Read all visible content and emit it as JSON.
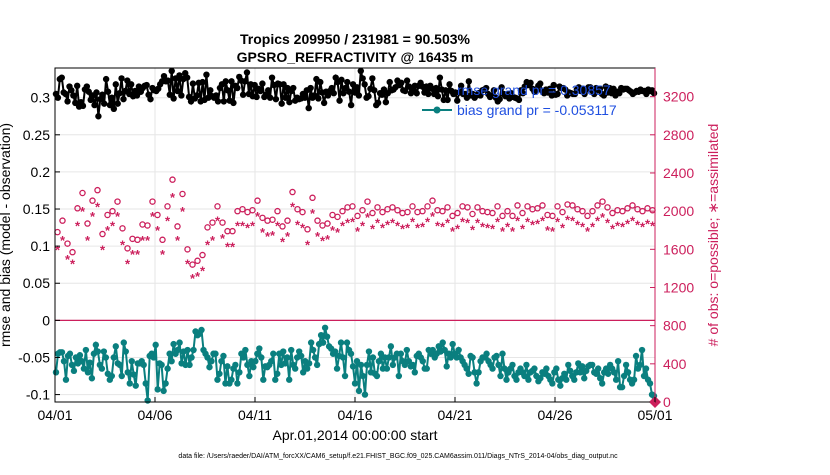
{
  "chart_data": {
    "type": "line",
    "title": "Tropics 209950 / 231981 = 90.503%",
    "subtitle": "GPSRO_REFRACTIVITY @ 16435 m",
    "xlabel": "Apr.01,2014 00:00:00 start",
    "ylabel_left": "rmse and bias (model - observation)",
    "ylabel_right": "# of obs: o=possible; ∗=assimilated",
    "footer": "data file: /Users/raeder/DAI/ATM_forcXX/CAM6_setup/f.e21.FHIST_BGC.f09_025.CAM6assim.011/Diags_NTrS_2014-04/obs_diag_output.nc",
    "x_ticks": [
      {
        "label": "04/01",
        "day": 0
      },
      {
        "label": "04/06",
        "day": 5
      },
      {
        "label": "04/11",
        "day": 10
      },
      {
        "label": "04/16",
        "day": 15
      },
      {
        "label": "04/21",
        "day": 20
      },
      {
        "label": "04/26",
        "day": 25
      },
      {
        "label": "05/01",
        "day": 30
      }
    ],
    "xlim": [
      0,
      30
    ],
    "ylim_left": [
      -0.11,
      0.34
    ],
    "y_ticks_left": [
      "-0.1",
      "-0.05",
      "0",
      "0.05",
      "0.1",
      "0.15",
      "0.2",
      "0.25",
      "0.3"
    ],
    "ylim_right": [
      0,
      3500
    ],
    "y_ticks_right": [
      "0",
      "400",
      "800",
      "1200",
      "1600",
      "2000",
      "2400",
      "2800",
      "3200"
    ],
    "legend": [
      {
        "label": "rmse grand pr = 0.30857",
        "color": "#000000"
      },
      {
        "label": "bias grand pr = -0.053117",
        "color": "#0a7f7f"
      }
    ],
    "legend_text_color": "#1f4fe0",
    "colors": {
      "rmse": "#000000",
      "bias": "#0a7f7f",
      "counts": "#cc1f5c",
      "zero_line": "#cc1f5c"
    },
    "rmse_series": [
      0.305,
      0.3,
      0.325,
      0.327,
      0.307,
      0.305,
      0.295,
      0.315,
      0.31,
      0.303,
      0.293,
      0.316,
      0.288,
      0.294,
      0.289,
      0.311,
      0.315,
      0.308,
      0.297,
      0.303,
      0.29,
      0.307,
      0.275,
      0.298,
      0.304,
      0.292,
      0.325,
      0.308,
      0.29,
      0.3,
      0.285,
      0.318,
      0.292,
      0.306,
      0.326,
      0.298,
      0.309,
      0.323,
      0.305,
      0.318,
      0.302,
      0.309,
      0.303,
      0.315,
      0.308,
      0.313,
      0.316,
      0.317,
      0.304,
      0.298,
      0.313,
      0.31,
      0.309,
      0.312,
      0.318,
      0.322,
      0.329,
      0.322,
      0.323,
      0.304,
      0.336,
      0.299,
      0.326,
      0.309,
      0.33,
      0.303,
      0.325,
      0.333,
      0.327,
      0.301,
      0.295,
      0.319,
      0.299,
      0.303,
      0.32,
      0.295,
      0.321,
      0.297,
      0.331,
      0.3,
      0.31,
      0.302,
      0.3,
      0.303,
      0.295,
      0.313,
      0.318,
      0.295,
      0.322,
      0.31,
      0.296,
      0.322,
      0.293,
      0.316,
      0.313,
      0.328,
      0.323,
      0.304,
      0.322,
      0.334,
      0.305,
      0.318,
      0.302,
      0.317,
      0.301,
      0.312,
      0.309,
      0.319,
      0.301,
      0.304,
      0.31,
      0.3,
      0.327,
      0.317,
      0.298,
      0.319,
      0.318,
      0.292,
      0.318,
      0.3,
      0.313,
      0.294,
      0.309,
      0.313,
      0.296,
      0.3,
      0.298,
      0.299,
      0.305,
      0.3,
      0.31,
      0.286,
      0.313,
      0.3,
      0.303,
      0.325,
      0.299,
      0.321,
      0.307,
      0.293,
      0.308,
      0.303,
      0.309,
      0.313,
      0.306,
      0.327,
      0.321,
      0.296,
      0.324,
      0.306,
      0.313,
      0.321,
      0.308,
      0.29,
      0.318,
      0.307,
      0.314,
      0.303,
      0.336,
      0.326,
      0.318,
      0.3,
      0.302,
      0.312,
      0.326,
      0.31,
      0.29,
      0.293,
      0.306,
      0.304,
      0.311,
      0.294,
      0.306,
      0.321,
      0.31,
      0.311,
      0.314,
      0.323,
      0.317,
      0.32,
      0.31,
      0.309,
      0.323,
      0.315,
      0.306,
      0.31,
      0.316,
      0.306,
      0.316,
      0.32,
      0.315,
      0.307,
      0.315,
      0.305,
      0.316,
      0.312,
      0.305,
      0.313,
      0.302,
      0.327,
      0.311,
      0.297,
      0.31,
      0.297,
      0.318,
      0.309,
      0.305,
      0.307,
      0.296,
      0.307,
      0.316,
      0.305,
      0.305,
      0.3,
      0.322,
      0.303,
      0.305,
      0.3,
      0.303,
      0.306,
      0.303,
      0.31,
      0.311,
      0.313,
      0.305,
      0.301,
      0.303,
      0.31,
      0.3,
      0.295,
      0.298,
      0.314,
      0.305,
      0.302,
      0.305,
      0.299,
      0.306,
      0.301,
      0.3,
      0.299,
      0.297,
      0.31,
      0.306,
      0.315,
      0.321,
      0.317,
      0.32,
      0.312,
      0.308,
      0.311,
      0.316,
      0.319,
      0.309,
      0.306,
      0.311,
      0.307,
      0.312,
      0.303,
      0.317,
      0.304,
      0.305,
      0.315,
      0.313,
      0.313,
      0.311,
      0.303,
      0.307,
      0.306,
      0.305,
      0.305,
      0.311,
      0.314,
      0.309,
      0.312,
      0.305,
      0.311,
      0.314,
      0.314,
      0.309,
      0.305,
      0.313,
      0.31,
      0.312,
      0.305,
      0.303,
      0.315,
      0.307,
      0.313,
      0.306,
      0.312,
      0.303,
      0.308,
      0.306,
      0.313,
      0.311,
      0.312,
      0.312,
      0.31,
      0.308,
      0.305,
      0.307,
      0.309,
      0.308,
      0.311,
      0.309,
      0.309,
      0.305,
      0.311,
      0.309,
      0.31,
      0.306
    ],
    "bias_series": [
      -0.07,
      -0.045,
      -0.043,
      -0.043,
      -0.055,
      -0.08,
      -0.048,
      -0.045,
      -0.06,
      -0.068,
      -0.05,
      -0.058,
      -0.047,
      -0.055,
      -0.065,
      -0.04,
      -0.07,
      -0.057,
      -0.078,
      -0.045,
      -0.033,
      -0.042,
      -0.06,
      -0.065,
      -0.042,
      -0.05,
      -0.072,
      -0.08,
      -0.075,
      -0.05,
      -0.035,
      -0.058,
      -0.06,
      -0.075,
      -0.03,
      -0.042,
      -0.07,
      -0.085,
      -0.055,
      -0.073,
      -0.088,
      -0.058,
      -0.058,
      -0.055,
      -0.06,
      -0.085,
      -0.108,
      -0.048,
      -0.045,
      -0.05,
      -0.033,
      -0.093,
      -0.058,
      -0.06,
      -0.095,
      -0.085,
      -0.065,
      -0.045,
      -0.055,
      -0.032,
      -0.045,
      -0.04,
      -0.03,
      -0.058,
      -0.042,
      -0.06,
      -0.04,
      -0.06,
      -0.05,
      -0.04,
      -0.015,
      -0.02,
      -0.018,
      -0.013,
      -0.04,
      -0.045,
      -0.05,
      -0.063,
      -0.055,
      -0.045,
      -0.045,
      -0.08,
      -0.072,
      -0.055,
      -0.048,
      -0.085,
      -0.062,
      -0.085,
      -0.08,
      -0.065,
      -0.06,
      -0.085,
      -0.07,
      -0.045,
      -0.05,
      -0.04,
      -0.06,
      -0.075,
      -0.055,
      -0.063,
      -0.055,
      -0.045,
      -0.038,
      -0.05,
      -0.08,
      -0.062,
      -0.063,
      -0.06,
      -0.055,
      -0.045,
      -0.08,
      -0.072,
      -0.045,
      -0.06,
      -0.042,
      -0.058,
      -0.05,
      -0.08,
      -0.04,
      -0.06,
      -0.065,
      -0.05,
      -0.042,
      -0.048,
      -0.07,
      -0.055,
      -0.065,
      -0.058,
      -0.03,
      -0.04,
      -0.05,
      -0.06,
      -0.032,
      -0.02,
      -0.03,
      -0.01,
      -0.022,
      -0.035,
      -0.038,
      -0.045,
      -0.042,
      -0.065,
      -0.048,
      -0.03,
      -0.05,
      -0.075,
      -0.03,
      -0.04,
      -0.045,
      -0.062,
      -0.085,
      -0.055,
      -0.095,
      -0.06,
      -0.075,
      -0.1,
      -0.06,
      -0.042,
      -0.07,
      -0.05,
      -0.072,
      -0.075,
      -0.055,
      -0.045,
      -0.065,
      -0.05,
      -0.065,
      -0.05,
      -0.035,
      -0.06,
      -0.05,
      -0.045,
      -0.075,
      -0.045,
      -0.055,
      -0.06,
      -0.04,
      -0.055,
      -0.062,
      -0.06,
      -0.07,
      -0.048,
      -0.045,
      -0.05,
      -0.055,
      -0.065,
      -0.065,
      -0.04,
      -0.045,
      -0.04,
      -0.05,
      -0.045,
      -0.035,
      -0.042,
      -0.03,
      -0.04,
      -0.062,
      -0.045,
      -0.05,
      -0.032,
      -0.045,
      -0.05,
      -0.04,
      -0.05,
      -0.055,
      -0.06,
      -0.065,
      -0.072,
      -0.048,
      -0.05,
      -0.07,
      -0.085,
      -0.07,
      -0.055,
      -0.05,
      -0.05,
      -0.045,
      -0.055,
      -0.06,
      -0.065,
      -0.05,
      -0.048,
      -0.06,
      -0.075,
      -0.045,
      -0.065,
      -0.08,
      -0.07,
      -0.065,
      -0.06,
      -0.075,
      -0.08,
      -0.07,
      -0.065,
      -0.07,
      -0.075,
      -0.06,
      -0.08,
      -0.07,
      -0.068,
      -0.065,
      -0.075,
      -0.082,
      -0.078,
      -0.07,
      -0.072,
      -0.065,
      -0.075,
      -0.08,
      -0.085,
      -0.07,
      -0.065,
      -0.08,
      -0.088,
      -0.078,
      -0.072,
      -0.08,
      -0.06,
      -0.068,
      -0.075,
      -0.08,
      -0.07,
      -0.058,
      -0.07,
      -0.062,
      -0.078,
      -0.068,
      -0.062,
      -0.06,
      -0.06,
      -0.07,
      -0.072,
      -0.065,
      -0.078,
      -0.085,
      -0.07,
      -0.065,
      -0.072,
      -0.06,
      -0.065,
      -0.07,
      -0.08,
      -0.055,
      -0.09,
      -0.09,
      -0.075,
      -0.06,
      -0.07,
      -0.08,
      -0.085,
      -0.08,
      -0.048,
      -0.065,
      -0.06,
      -0.04,
      -0.075,
      -0.065,
      -0.08,
      -0.085,
      -0.1,
      -0.102
    ],
    "possible_series": [
      1780,
      1900,
      1660,
      1570,
      2030,
      2190,
      1870,
      2110,
      2220,
      1760,
      1960,
      2000,
      2100,
      1820,
      1610,
      1710,
      1700,
      1860,
      1850,
      2100,
      1960,
      1700,
      2050,
      2330,
      1840,
      2180,
      1600,
      1440,
      1480,
      1540,
      1830,
      1880,
      2050,
      1880,
      1790,
      1790,
      2000,
      2020,
      1990,
      2010,
      2110,
      1930,
      1900,
      1910,
      2000,
      1840,
      1900,
      2200,
      2020,
      1990,
      1810,
      2140,
      1900,
      1850,
      1870,
      1960,
      1940,
      2000,
      2040,
      2050,
      1950,
      2010,
      2100,
      1980,
      2040,
      1990,
      2020,
      2040,
      2010,
      1980,
      1990,
      2050,
      1990,
      2000,
      2050,
      2110,
      2010,
      2000,
      2040,
      1950,
      1980,
      2050,
      2040,
      1970,
      2040,
      2000,
      1990,
      1980,
      2050,
      1950,
      2000,
      1950,
      2060,
      1980,
      2050,
      2020,
      2030,
      2060,
      1960,
      1950,
      2050,
      1990,
      2070,
      2060,
      2020,
      2000,
      1950,
      2000,
      2060,
      2100,
      2040,
      1980,
      2010,
      2000,
      2030,
      2060,
      2020,
      2000,
      2030,
      2010
    ],
    "assimilated_series": [
      1600,
      1700,
      1500,
      1450,
      1850,
      2000,
      1700,
      1950,
      2050,
      1600,
      1800,
      1850,
      1950,
      1650,
      1450,
      1550,
      1550,
      1700,
      1700,
      1950,
      1800,
      1550,
      1900,
      2150,
      1700,
      2000,
      1450,
      1300,
      1320,
      1380,
      1650,
      1700,
      1900,
      1720,
      1630,
      1630,
      1850,
      1850,
      1830,
      1850,
      1950,
      1780,
      1740,
      1750,
      1850,
      1680,
      1740,
      2050,
      1860,
      1830,
      1650,
      1980,
      1740,
      1690,
      1710,
      1800,
      1780,
      1850,
      1880,
      1890,
      1790,
      1850,
      1940,
      1820,
      1880,
      1830,
      1860,
      1880,
      1850,
      1820,
      1830,
      1890,
      1830,
      1840,
      1890,
      1950,
      1850,
      1840,
      1880,
      1790,
      1820,
      1890,
      1880,
      1810,
      1880,
      1840,
      1830,
      1820,
      1890,
      1790,
      1840,
      1790,
      1900,
      1820,
      1890,
      1860,
      1870,
      1900,
      1800,
      1790,
      1890,
      1830,
      1910,
      1900,
      1860,
      1840,
      1790,
      1840,
      1900,
      1940,
      1880,
      1820,
      1850,
      1840,
      1870,
      1900,
      1860,
      1840,
      1870,
      1850
    ]
  }
}
